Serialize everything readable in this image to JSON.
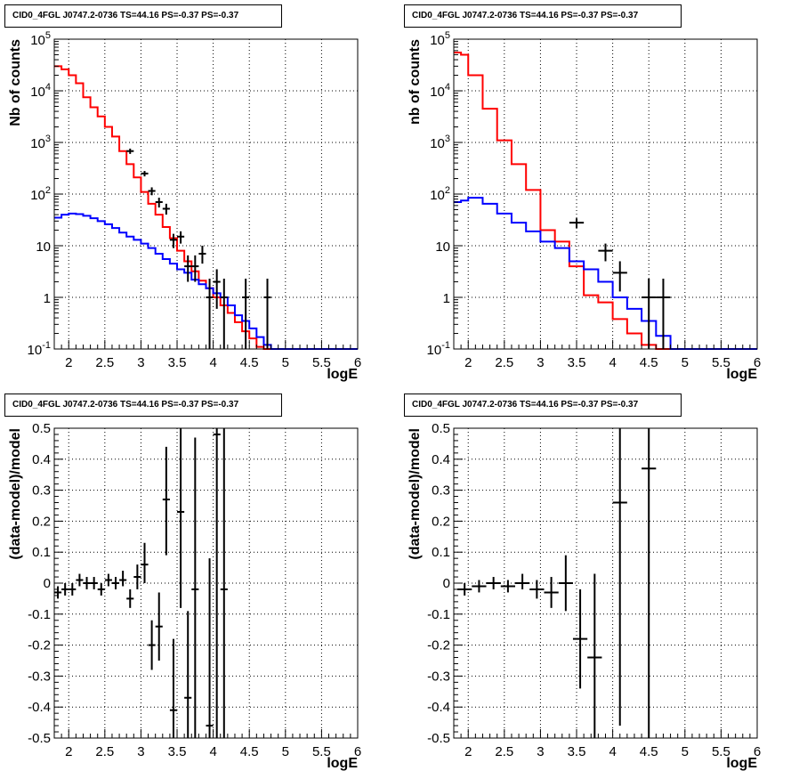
{
  "chart_data": [
    {
      "type": "histogram",
      "title": "CID0_4FGL J0747.2-0736 TS=44.16 PS=-0.37 PS=-0.37",
      "xlabel": "logE",
      "ylabel": "Nb of counts",
      "xlim": [
        1.8,
        6.0
      ],
      "ylim": [
        0.1,
        100000
      ],
      "log_y": true,
      "grid": true,
      "x_ticks": [
        "2",
        "2.5",
        "3",
        "3.5",
        "4",
        "4.5",
        "5",
        "5.5",
        "6"
      ],
      "y_ticks": [
        "10^{-1}",
        "1",
        "10",
        "10^{2}",
        "10^{3}",
        "10^{4}",
        "10^{5}"
      ],
      "bin_edges": [
        1.8,
        1.9,
        2.0,
        2.1,
        2.2,
        2.3,
        2.4,
        2.5,
        2.6,
        2.7,
        2.8,
        2.9,
        3.0,
        3.1,
        3.2,
        3.3,
        3.4,
        3.5,
        3.6,
        3.7,
        3.8,
        3.9,
        4.0,
        4.1,
        4.2,
        4.3,
        4.4,
        4.5,
        4.6,
        4.7,
        4.8,
        4.9,
        5.0,
        5.1,
        5.2,
        5.3,
        5.4,
        5.5,
        5.6,
        5.7,
        5.8,
        5.9,
        6.0
      ],
      "series": [
        {
          "color": "#ff0000",
          "style": "step",
          "values": [
            30000,
            26000,
            20000,
            14000,
            7500,
            4800,
            3200,
            2000,
            1300,
            680,
            380,
            210,
            110,
            65,
            40,
            23,
            14,
            8,
            5,
            3.2,
            2.1,
            1.5,
            1.0,
            0.7,
            0.5,
            0.33,
            0.22,
            0.16,
            0.11,
            0.1,
            0.1,
            0.1,
            0.1,
            0.1,
            0.1,
            0.1,
            0.1,
            0.1,
            0.1,
            0.1,
            0.1,
            0.1
          ]
        },
        {
          "color": "#0000ff",
          "style": "step",
          "values": [
            35,
            40,
            42,
            41,
            38,
            34,
            30,
            26,
            22,
            18,
            15,
            13,
            11,
            9,
            7,
            5.5,
            4.5,
            3.5,
            3,
            2.2,
            1.8,
            1.5,
            1.2,
            1.0,
            0.7,
            0.45,
            0.35,
            0.25,
            0.17,
            0.12,
            0.1,
            0.1,
            0.1,
            0.1,
            0.1,
            0.1,
            0.1,
            0.1,
            0.1,
            0.1,
            0.1,
            0.1
          ]
        }
      ],
      "data_points": [
        {
          "x": 2.85,
          "y": 680,
          "ylo": 600,
          "yhi": 760,
          "xerr": 0.05
        },
        {
          "x": 3.05,
          "y": 250,
          "ylo": 220,
          "yhi": 280,
          "xerr": 0.05
        },
        {
          "x": 3.15,
          "y": 115,
          "ylo": 95,
          "yhi": 135,
          "xerr": 0.05
        },
        {
          "x": 3.25,
          "y": 70,
          "ylo": 55,
          "yhi": 85,
          "xerr": 0.05
        },
        {
          "x": 3.35,
          "y": 52,
          "ylo": 40,
          "yhi": 65,
          "xerr": 0.05
        },
        {
          "x": 3.45,
          "y": 13,
          "ylo": 9,
          "yhi": 17,
          "xerr": 0.05
        },
        {
          "x": 3.55,
          "y": 15,
          "ylo": 11,
          "yhi": 19,
          "xerr": 0.05
        },
        {
          "x": 3.65,
          "y": 4,
          "ylo": 2,
          "yhi": 6.5,
          "xerr": 0.05
        },
        {
          "x": 3.75,
          "y": 4,
          "ylo": 2,
          "yhi": 6.5,
          "xerr": 0.05
        },
        {
          "x": 3.85,
          "y": 7,
          "ylo": 4.5,
          "yhi": 10,
          "xerr": 0.05
        },
        {
          "x": 3.95,
          "y": 1,
          "ylo": 0.1,
          "yhi": 2.3,
          "xerr": 0.05
        },
        {
          "x": 4.05,
          "y": 2,
          "ylo": 0.6,
          "yhi": 3.5,
          "xerr": 0.05
        },
        {
          "x": 4.15,
          "y": 1,
          "ylo": 0.1,
          "yhi": 2.3,
          "xerr": 0.05
        },
        {
          "x": 4.45,
          "y": 1,
          "ylo": 0.1,
          "yhi": 2.3,
          "xerr": 0.05
        },
        {
          "x": 4.75,
          "y": 1,
          "ylo": 0.1,
          "yhi": 2.3,
          "xerr": 0.05
        }
      ]
    },
    {
      "type": "histogram",
      "title": "CID0_4FGL J0747.2-0736 TS=44.16 PS=-0.37 PS=-0.37",
      "xlabel": "logE",
      "ylabel": "nb of counts",
      "xlim": [
        1.8,
        6.0
      ],
      "ylim": [
        0.1,
        100000
      ],
      "log_y": true,
      "grid": true,
      "x_ticks": [
        "2",
        "2.5",
        "3",
        "3.5",
        "4",
        "4.5",
        "5",
        "5.5",
        "6"
      ],
      "y_ticks": [
        "10^{-1}",
        "1",
        "10",
        "10^{2}",
        "10^{3}",
        "10^{4}",
        "10^{5}"
      ],
      "bin_edges": [
        1.8,
        1.9,
        2.0,
        2.2,
        2.4,
        2.6,
        2.8,
        3.0,
        3.2,
        3.4,
        3.6,
        3.8,
        4.0,
        4.2,
        4.4,
        4.6,
        4.8,
        5.0,
        5.2,
        5.4,
        5.6,
        5.8,
        6.0
      ],
      "series": [
        {
          "color": "#ff0000",
          "style": "step",
          "values": [
            55000,
            50000,
            20000,
            4500,
            1100,
            380,
            120,
            20,
            12,
            4,
            1.1,
            0.8,
            0.38,
            0.2,
            0.12,
            0.1,
            0.1,
            0.1,
            0.1,
            0.1,
            0.1,
            0.1
          ]
        },
        {
          "color": "#0000ff",
          "style": "step",
          "values": [
            70,
            75,
            85,
            65,
            42,
            28,
            19,
            12,
            9,
            5,
            3.5,
            2,
            1,
            0.6,
            0.35,
            0.18,
            0.1,
            0.1,
            0.1,
            0.1,
            0.1,
            0.1
          ]
        }
      ],
      "data_points": [
        {
          "x": 3.5,
          "y": 28,
          "ylo": 22,
          "yhi": 34,
          "xerr": 0.1
        },
        {
          "x": 3.9,
          "y": 8,
          "ylo": 5,
          "yhi": 11,
          "xerr": 0.1
        },
        {
          "x": 4.1,
          "y": 3,
          "ylo": 1.3,
          "yhi": 5,
          "xerr": 0.1
        },
        {
          "x": 4.5,
          "y": 1,
          "ylo": 0.1,
          "yhi": 2.3,
          "xerr": 0.1
        },
        {
          "x": 4.7,
          "y": 1,
          "ylo": 0.1,
          "yhi": 2.3,
          "xerr": 0.1
        }
      ]
    },
    {
      "type": "scatter",
      "title": "CID0_4FGL J0747.2-0736 TS=44.16 PS=-0.37 PS=-0.37",
      "xlabel": "logE",
      "ylabel": "(data-model)/model",
      "xlim": [
        1.8,
        6.0
      ],
      "ylim": [
        -0.5,
        0.5
      ],
      "grid": true,
      "x_ticks": [
        "2",
        "2.5",
        "3",
        "3.5",
        "4",
        "4.5",
        "5",
        "5.5",
        "6"
      ],
      "y_ticks": [
        "-0.5",
        "-0.4",
        "-0.3",
        "-0.2",
        "-0.1",
        "0",
        "0.1",
        "0.2",
        "0.3",
        "0.4",
        "0.5"
      ],
      "data_points": [
        {
          "x": 1.85,
          "y": -0.03,
          "ylo": -0.05,
          "yhi": -0.01,
          "xerr": 0.05
        },
        {
          "x": 1.95,
          "y": -0.02,
          "ylo": -0.04,
          "yhi": 0.0,
          "xerr": 0.05
        },
        {
          "x": 2.05,
          "y": -0.02,
          "ylo": -0.04,
          "yhi": 0.0,
          "xerr": 0.05
        },
        {
          "x": 2.15,
          "y": 0.01,
          "ylo": -0.01,
          "yhi": 0.03,
          "xerr": 0.05
        },
        {
          "x": 2.25,
          "y": 0.0,
          "ylo": -0.02,
          "yhi": 0.02,
          "xerr": 0.05
        },
        {
          "x": 2.35,
          "y": 0.0,
          "ylo": -0.02,
          "yhi": 0.02,
          "xerr": 0.05
        },
        {
          "x": 2.45,
          "y": -0.02,
          "ylo": -0.04,
          "yhi": 0.0,
          "xerr": 0.05
        },
        {
          "x": 2.55,
          "y": 0.01,
          "ylo": -0.01,
          "yhi": 0.03,
          "xerr": 0.05
        },
        {
          "x": 2.65,
          "y": 0.0,
          "ylo": -0.02,
          "yhi": 0.02,
          "xerr": 0.05
        },
        {
          "x": 2.75,
          "y": 0.01,
          "ylo": -0.01,
          "yhi": 0.04,
          "xerr": 0.05
        },
        {
          "x": 2.85,
          "y": -0.05,
          "ylo": -0.08,
          "yhi": -0.02,
          "xerr": 0.05
        },
        {
          "x": 2.95,
          "y": 0.02,
          "ylo": -0.02,
          "yhi": 0.06,
          "xerr": 0.05
        },
        {
          "x": 3.05,
          "y": 0.06,
          "ylo": 0.0,
          "yhi": 0.13,
          "xerr": 0.05
        },
        {
          "x": 3.15,
          "y": -0.2,
          "ylo": -0.28,
          "yhi": -0.12,
          "xerr": 0.05
        },
        {
          "x": 3.25,
          "y": -0.14,
          "ylo": -0.25,
          "yhi": -0.03,
          "xerr": 0.05
        },
        {
          "x": 3.35,
          "y": 0.27,
          "ylo": 0.09,
          "yhi": 0.44,
          "xerr": 0.05
        },
        {
          "x": 3.45,
          "y": -0.41,
          "ylo": -0.5,
          "yhi": -0.18,
          "xerr": 0.05
        },
        {
          "x": 3.55,
          "y": 0.23,
          "ylo": -0.08,
          "yhi": 0.5,
          "xerr": 0.05
        },
        {
          "x": 3.65,
          "y": -0.37,
          "ylo": -0.5,
          "yhi": -0.09,
          "xerr": 0.05
        },
        {
          "x": 3.75,
          "y": -0.02,
          "ylo": -0.5,
          "yhi": 0.47,
          "xerr": 0.05
        },
        {
          "x": 3.95,
          "y": -0.46,
          "ylo": -0.5,
          "yhi": 0.08,
          "xerr": 0.05
        },
        {
          "x": 4.05,
          "y": 0.48,
          "ylo": -0.5,
          "yhi": 0.5,
          "xerr": 0.05
        },
        {
          "x": 4.15,
          "y": -0.02,
          "ylo": -0.5,
          "yhi": 0.5,
          "xerr": 0.05
        }
      ]
    },
    {
      "type": "scatter",
      "title": "CID0_4FGL J0747.2-0736 TS=44.16 PS=-0.37 PS=-0.37",
      "xlabel": "logE",
      "ylabel": "(data-model)/model",
      "xlim": [
        1.8,
        6.0
      ],
      "ylim": [
        -0.5,
        0.5
      ],
      "grid": true,
      "x_ticks": [
        "2",
        "2.5",
        "3",
        "3.5",
        "4",
        "4.5",
        "5",
        "5.5",
        "6"
      ],
      "y_ticks": [
        "-0.5",
        "-0.4",
        "-0.3",
        "-0.2",
        "-0.1",
        "0",
        "0.1",
        "0.2",
        "0.3",
        "0.4",
        "0.5"
      ],
      "data_points": [
        {
          "x": 1.95,
          "y": -0.02,
          "ylo": -0.04,
          "yhi": 0.0,
          "xerr": 0.1
        },
        {
          "x": 2.15,
          "y": -0.01,
          "ylo": -0.03,
          "yhi": 0.01,
          "xerr": 0.1
        },
        {
          "x": 2.35,
          "y": 0.0,
          "ylo": -0.02,
          "yhi": 0.02,
          "xerr": 0.1
        },
        {
          "x": 2.55,
          "y": -0.01,
          "ylo": -0.03,
          "yhi": 0.01,
          "xerr": 0.1
        },
        {
          "x": 2.75,
          "y": 0.0,
          "ylo": -0.02,
          "yhi": 0.03,
          "xerr": 0.1
        },
        {
          "x": 2.95,
          "y": -0.02,
          "ylo": -0.05,
          "yhi": 0.01,
          "xerr": 0.1
        },
        {
          "x": 3.15,
          "y": -0.03,
          "ylo": -0.08,
          "yhi": 0.02,
          "xerr": 0.1
        },
        {
          "x": 3.35,
          "y": 0.0,
          "ylo": -0.09,
          "yhi": 0.09,
          "xerr": 0.1
        },
        {
          "x": 3.55,
          "y": -0.18,
          "ylo": -0.34,
          "yhi": -0.02,
          "xerr": 0.1
        },
        {
          "x": 3.75,
          "y": -0.24,
          "ylo": -0.5,
          "yhi": 0.03,
          "xerr": 0.1
        },
        {
          "x": 4.1,
          "y": 0.26,
          "ylo": -0.46,
          "yhi": 0.5,
          "xerr": 0.1
        },
        {
          "x": 4.5,
          "y": 0.37,
          "ylo": -0.5,
          "yhi": 0.5,
          "xerr": 0.1
        }
      ]
    }
  ]
}
